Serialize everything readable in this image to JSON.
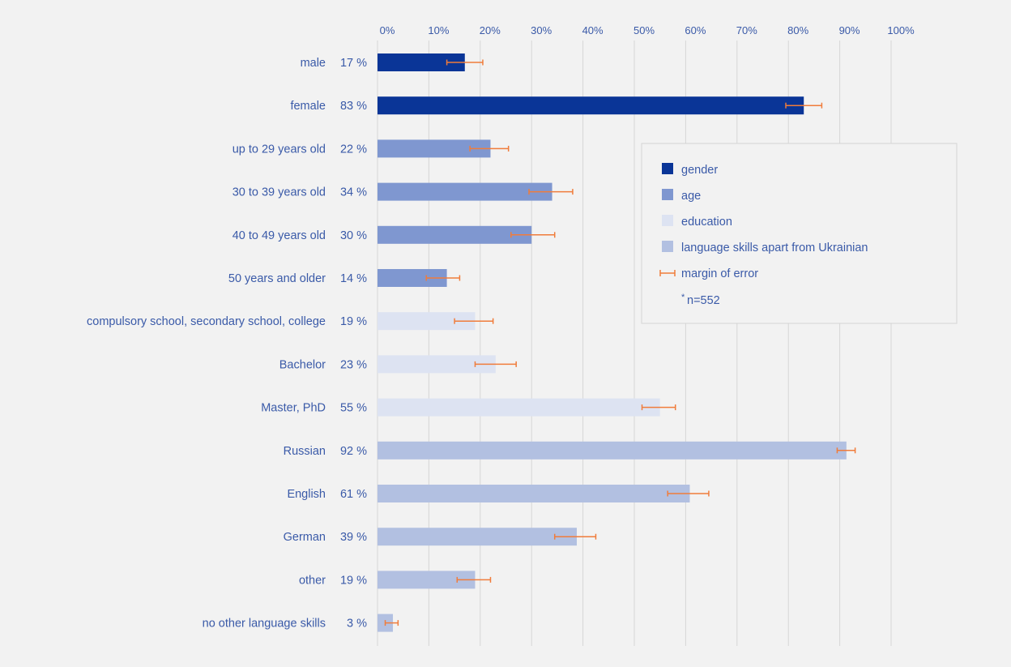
{
  "chart_data": {
    "type": "bar",
    "orientation": "horizontal",
    "xlim": [
      0,
      100
    ],
    "x_ticks": [
      "0%",
      "10%",
      "20%",
      "30%",
      "40%",
      "50%",
      "60%",
      "70%",
      "80%",
      "90%",
      "100%"
    ],
    "grid": "vertical",
    "legend_position": "right",
    "groups": [
      {
        "name": "gender",
        "color": "#0a3597"
      },
      {
        "name": "age",
        "color": "#7f97d0"
      },
      {
        "name": "education",
        "color": "#dde3f2"
      },
      {
        "name": "language skills apart from Ukrainian",
        "color": "#b2c0e1"
      }
    ],
    "error_label": "margin of error",
    "error_color": "#f07c3b",
    "note": "n=552",
    "note_mark": "*",
    "rows": [
      {
        "label": "male",
        "value_label": "17 %",
        "value": 17,
        "bar": 17,
        "err_low": 13.5,
        "err_high": 20.5,
        "group": 0
      },
      {
        "label": "female",
        "value_label": "83 %",
        "value": 83,
        "bar": 83,
        "err_low": 79.5,
        "err_high": 86.5,
        "group": 0
      },
      {
        "label": "up to 29 years old",
        "value_label": "22 %",
        "value": 22,
        "bar": 22,
        "err_low": 18,
        "err_high": 25.5,
        "group": 1
      },
      {
        "label": "30 to 39 years old",
        "value_label": "34 %",
        "value": 34,
        "bar": 34,
        "err_low": 29.5,
        "err_high": 38,
        "group": 1
      },
      {
        "label": "40 to 49 years old",
        "value_label": "30 %",
        "value": 30,
        "bar": 30,
        "err_low": 26,
        "err_high": 34.5,
        "group": 1
      },
      {
        "label": "50 years and older",
        "value_label": "14 %",
        "value": 14,
        "bar": 13.5,
        "err_low": 9.5,
        "err_high": 16,
        "group": 1
      },
      {
        "label": "compulsory school, secondary school, college",
        "value_label": "19 %",
        "value": 19,
        "bar": 19,
        "err_low": 15,
        "err_high": 22.5,
        "group": 2
      },
      {
        "label": "Bachelor",
        "value_label": "23 %",
        "value": 23,
        "bar": 23,
        "err_low": 19,
        "err_high": 27,
        "group": 2
      },
      {
        "label": "Master, PhD",
        "value_label": "55 %",
        "value": 55,
        "bar": 55,
        "err_low": 51.5,
        "err_high": 58,
        "group": 2
      },
      {
        "label": "Russian",
        "value_label": "92 %",
        "value": 92,
        "bar": 91.3,
        "err_low": 89.5,
        "err_high": 93,
        "group": 3
      },
      {
        "label": "English",
        "value_label": "61 %",
        "value": 61,
        "bar": 60.8,
        "err_low": 56.5,
        "err_high": 64.5,
        "group": 3
      },
      {
        "label": "German",
        "value_label": "39 %",
        "value": 39,
        "bar": 38.8,
        "err_low": 34.5,
        "err_high": 42.5,
        "group": 3
      },
      {
        "label": "other",
        "value_label": "19 %",
        "value": 19,
        "bar": 19,
        "err_low": 15.5,
        "err_high": 22,
        "group": 3
      },
      {
        "label": "no other language skills",
        "value_label": "3 %",
        "value": 3,
        "bar": 3,
        "err_low": 1.5,
        "err_high": 4,
        "group": 3
      }
    ]
  }
}
